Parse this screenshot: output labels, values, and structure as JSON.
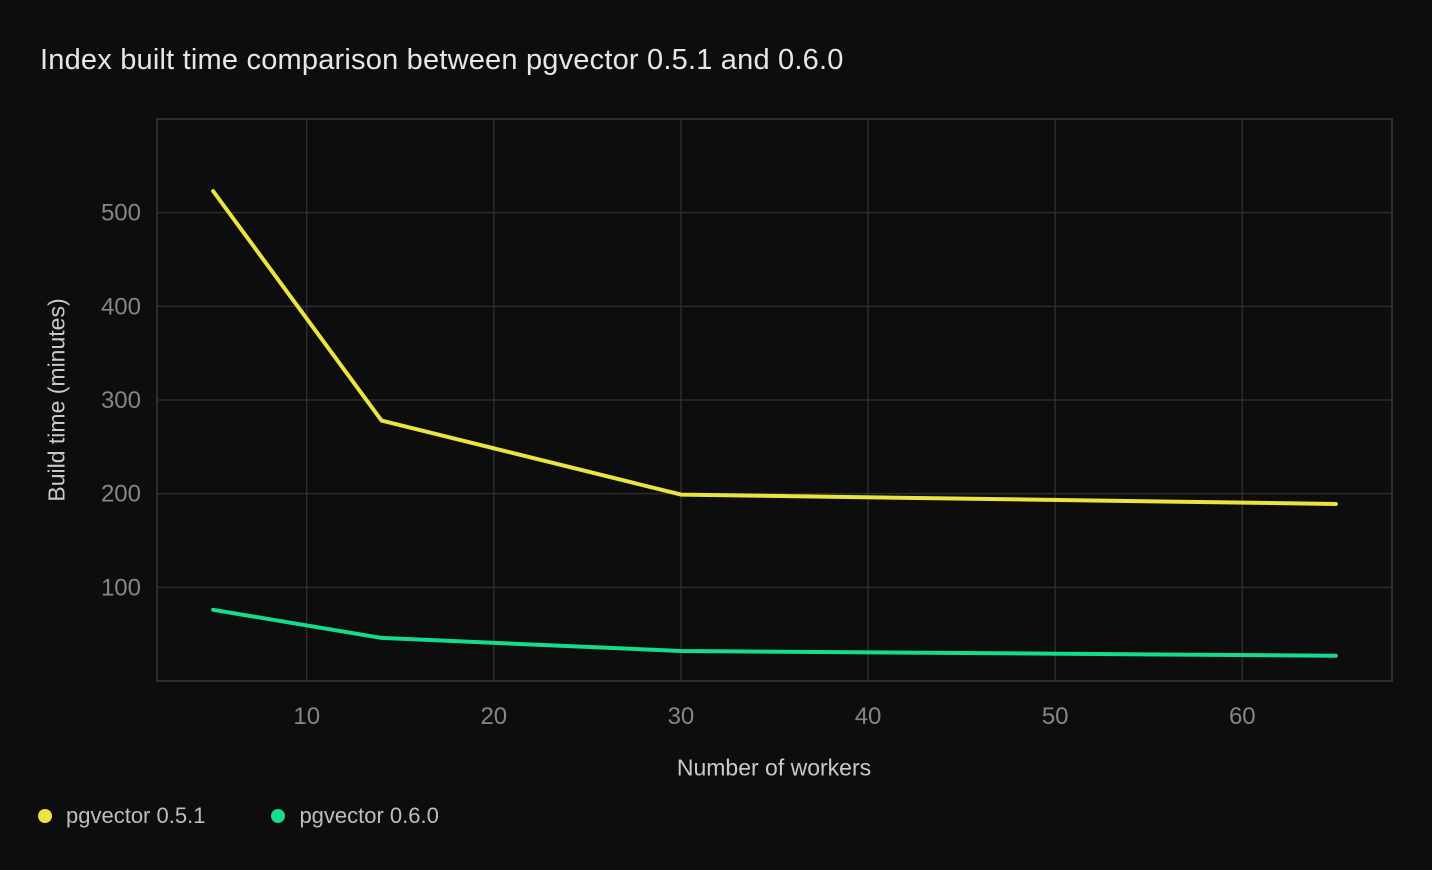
{
  "title": {
    "text": "Index built time comparison between pgvector 0.5.1 and 0.6.0",
    "color": "#e7e7e9"
  },
  "colors": {
    "background": "#0d0d0d",
    "grid": "#2d2d2d",
    "tick_label": "#85858b",
    "axis_label": "#c9c9ce",
    "legend_label": "#bdbdc3",
    "series_051": "#e9e441",
    "series_060": "#15dc8d"
  },
  "chart_data": {
    "type": "line",
    "title": "Index built time comparison between pgvector 0.5.1 and 0.6.0",
    "xlabel": "Number of workers",
    "ylabel": "Build time (minutes)",
    "xlim": [
      2,
      68
    ],
    "ylim": [
      0,
      600
    ],
    "x_ticks": [
      10,
      20,
      30,
      40,
      50,
      60
    ],
    "y_ticks": [
      100,
      200,
      300,
      400,
      500
    ],
    "grid": true,
    "legend_position": "bottom-left",
    "series": [
      {
        "name": "pgvector 0.5.1",
        "color": "#e9e441",
        "x": [
          5,
          14,
          30,
          65
        ],
        "values": [
          523,
          278,
          199,
          189
        ]
      },
      {
        "name": "pgvector 0.6.0",
        "color": "#15dc8d",
        "x": [
          5,
          14,
          30,
          65
        ],
        "values": [
          76,
          46,
          32,
          27
        ]
      }
    ]
  }
}
